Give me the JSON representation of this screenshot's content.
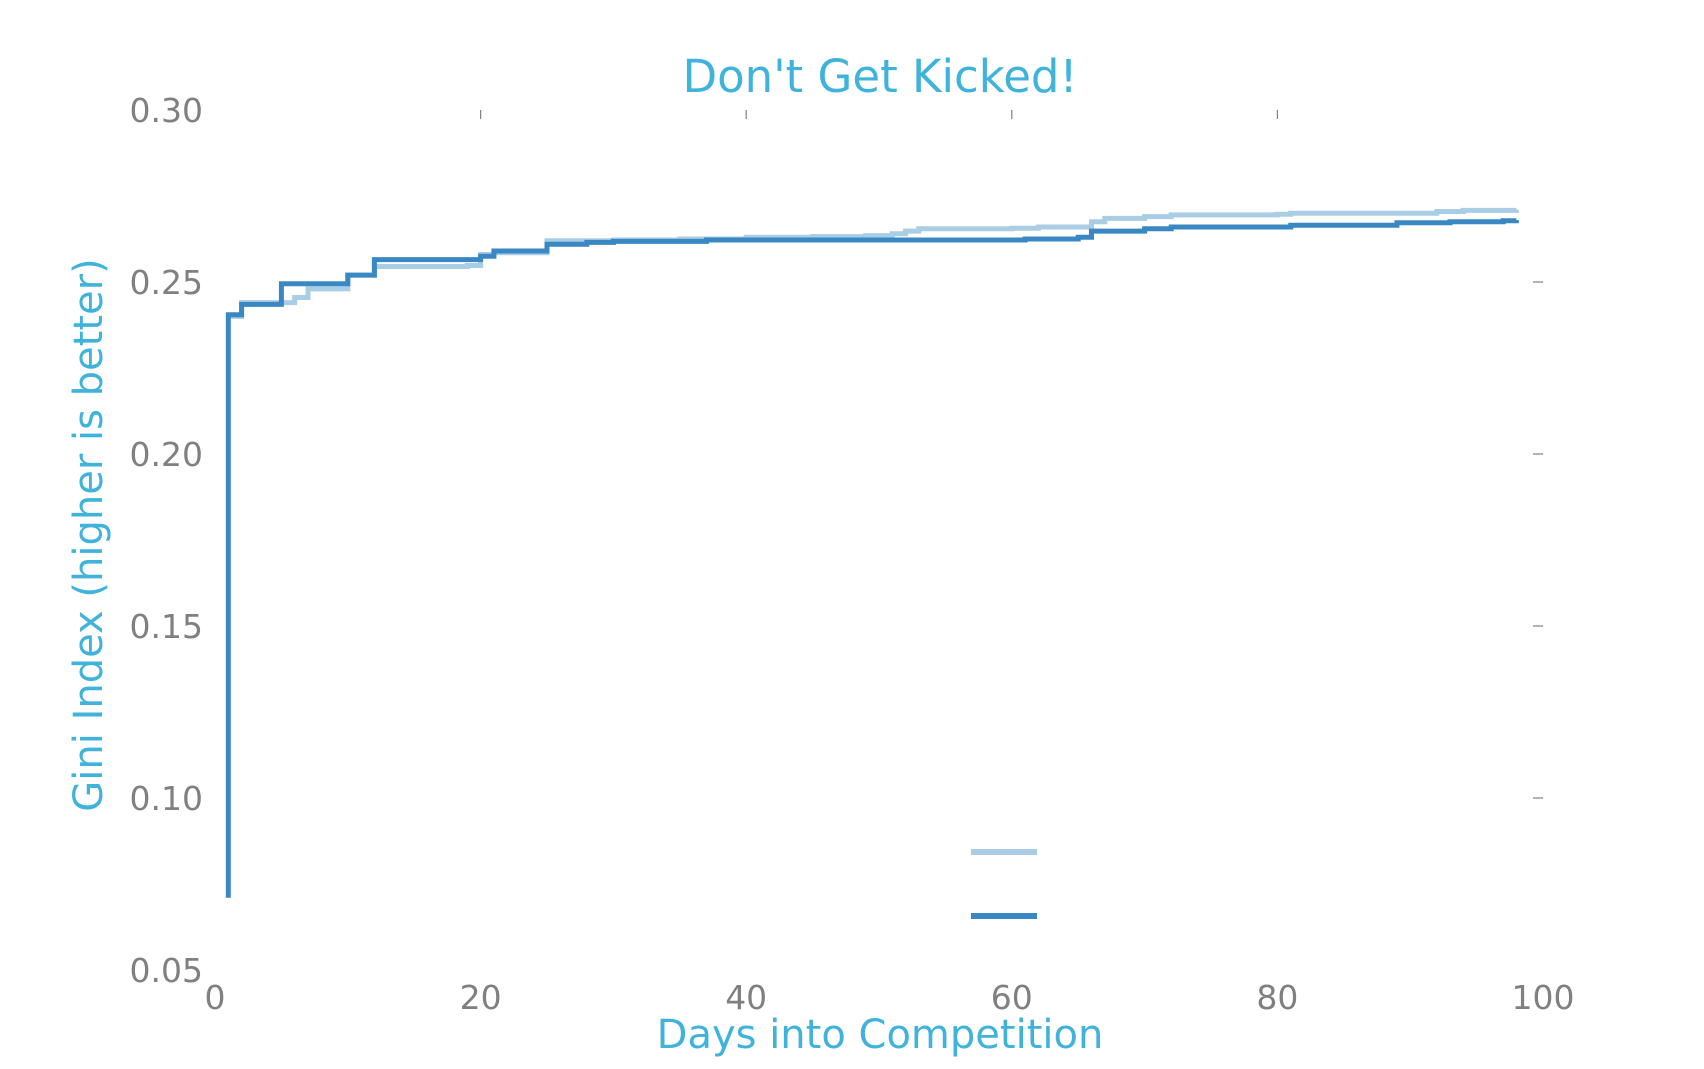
{
  "chart_data": {
    "type": "line",
    "step": true,
    "title": "Don't Get Kicked!",
    "xlabel": "Days into Competition",
    "ylabel": "Gini Index (higher is better)",
    "xlim": [
      0,
      100
    ],
    "ylim": [
      0.05,
      0.3
    ],
    "xticks": [
      "0",
      "20",
      "40",
      "60",
      "80",
      "100"
    ],
    "yticks": [
      "0.05",
      "0.10",
      "0.15",
      "0.20",
      "0.25",
      "0.30"
    ],
    "grid": false,
    "legend": "bottom-center",
    "series": [
      {
        "color": "#a8cde4",
        "points": [
          [
            1,
            0.24
          ],
          [
            2,
            0.244
          ],
          [
            6,
            0.2455
          ],
          [
            7,
            0.248
          ],
          [
            10,
            0.252
          ],
          [
            12,
            0.2545
          ],
          [
            19,
            0.2548
          ],
          [
            20,
            0.258
          ],
          [
            21,
            0.2585
          ],
          [
            25,
            0.262
          ],
          [
            30,
            0.2622
          ],
          [
            35,
            0.2625
          ],
          [
            40,
            0.263
          ],
          [
            45,
            0.2632
          ],
          [
            49,
            0.2635
          ],
          [
            51,
            0.264
          ],
          [
            52,
            0.2648
          ],
          [
            53,
            0.2655
          ],
          [
            60,
            0.2656
          ],
          [
            62,
            0.266
          ],
          [
            66,
            0.2675
          ],
          [
            67,
            0.2685
          ],
          [
            70,
            0.269
          ],
          [
            72,
            0.2695
          ],
          [
            80,
            0.2697
          ],
          [
            81,
            0.27
          ],
          [
            92,
            0.2705
          ],
          [
            94,
            0.2708
          ],
          [
            98,
            0.271
          ]
        ]
      },
      {
        "color": "#3a88c3",
        "points": [
          [
            1,
            0.071
          ],
          [
            1,
            0.2405
          ],
          [
            2,
            0.2435
          ],
          [
            5,
            0.2495
          ],
          [
            10,
            0.252
          ],
          [
            12,
            0.2565
          ],
          [
            20,
            0.2575
          ],
          [
            21,
            0.259
          ],
          [
            25,
            0.261
          ],
          [
            28,
            0.2615
          ],
          [
            30,
            0.2618
          ],
          [
            37,
            0.2622
          ],
          [
            61,
            0.2625
          ],
          [
            65,
            0.263
          ],
          [
            66,
            0.2648
          ],
          [
            70,
            0.2655
          ],
          [
            72,
            0.266
          ],
          [
            81,
            0.2665
          ],
          [
            89,
            0.2672
          ],
          [
            93,
            0.2675
          ],
          [
            97,
            0.2678
          ],
          [
            98,
            0.268
          ]
        ]
      }
    ]
  }
}
